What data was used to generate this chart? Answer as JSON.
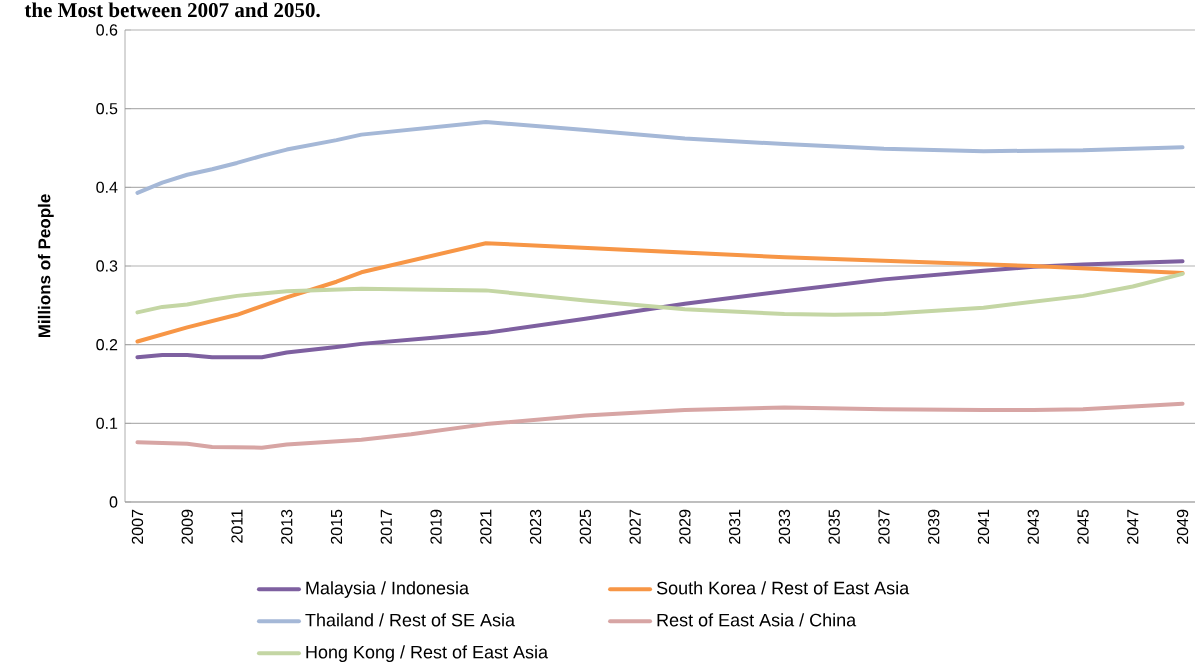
{
  "chart_data": {
    "type": "line",
    "title": "the Most between 2007 and 2050.",
    "ylabel": "Millions of People",
    "xlim": [
      2006.5,
      2049.5
    ],
    "xticks": [
      2007,
      2009,
      2011,
      2013,
      2015,
      2017,
      2019,
      2021,
      2023,
      2025,
      2027,
      2029,
      2031,
      2033,
      2035,
      2037,
      2039,
      2041,
      2043,
      2045,
      2047,
      2049
    ],
    "ylim": [
      0,
      0.6
    ],
    "yticks": [
      0,
      0.1,
      0.2,
      0.3,
      0.4,
      0.5,
      0.6
    ],
    "grid": "y",
    "legend": "bottom",
    "line_style": "solid",
    "series": [
      {
        "name": "Malaysia / Indonesia",
        "color": "#7e60a0",
        "x": [
          2007,
          2008,
          2009,
          2010,
          2011,
          2012,
          2013,
          2015,
          2016,
          2019,
          2021,
          2025,
          2029,
          2033,
          2037,
          2041,
          2043,
          2045,
          2049
        ],
        "values": [
          0.184,
          0.187,
          0.187,
          0.184,
          0.184,
          0.184,
          0.19,
          0.197,
          0.201,
          0.209,
          0.215,
          0.233,
          0.252,
          0.268,
          0.283,
          0.294,
          0.299,
          0.302,
          0.306
        ]
      },
      {
        "name": "South Korea / Rest of East Asia",
        "color": "#f79646",
        "x": [
          2007,
          2009,
          2011,
          2013,
          2015,
          2016,
          2021,
          2033,
          2043,
          2049
        ],
        "values": [
          0.204,
          0.222,
          0.238,
          0.26,
          0.28,
          0.292,
          0.329,
          0.311,
          0.3,
          0.291
        ]
      },
      {
        "name": "Thailand / Rest of SE Asia",
        "color": "#a5b8d7",
        "x": [
          2007,
          2008,
          2009,
          2010,
          2011,
          2012,
          2013,
          2015,
          2016,
          2021,
          2025,
          2029,
          2033,
          2037,
          2041,
          2045,
          2049
        ],
        "values": [
          0.393,
          0.406,
          0.416,
          0.423,
          0.431,
          0.44,
          0.448,
          0.46,
          0.467,
          0.483,
          0.473,
          0.462,
          0.455,
          0.449,
          0.446,
          0.447,
          0.451
        ]
      },
      {
        "name": "Rest of East Asia / China",
        "color": "#d7a5a4",
        "x": [
          2007,
          2009,
          2010,
          2012,
          2013,
          2016,
          2018,
          2021,
          2025,
          2029,
          2033,
          2037,
          2041,
          2043,
          2045,
          2049
        ],
        "values": [
          0.076,
          0.074,
          0.07,
          0.069,
          0.073,
          0.079,
          0.086,
          0.099,
          0.11,
          0.117,
          0.12,
          0.118,
          0.117,
          0.117,
          0.118,
          0.125
        ]
      },
      {
        "name": "Hong Kong / Rest of East Asia",
        "color": "#c4d6a4",
        "x": [
          2007,
          2008,
          2009,
          2010,
          2011,
          2013,
          2016,
          2021,
          2025,
          2029,
          2033,
          2035,
          2037,
          2041,
          2045,
          2047,
          2049
        ],
        "values": [
          0.241,
          0.248,
          0.251,
          0.257,
          0.262,
          0.268,
          0.271,
          0.269,
          0.256,
          0.245,
          0.239,
          0.238,
          0.239,
          0.247,
          0.262,
          0.274,
          0.29
        ]
      }
    ]
  }
}
